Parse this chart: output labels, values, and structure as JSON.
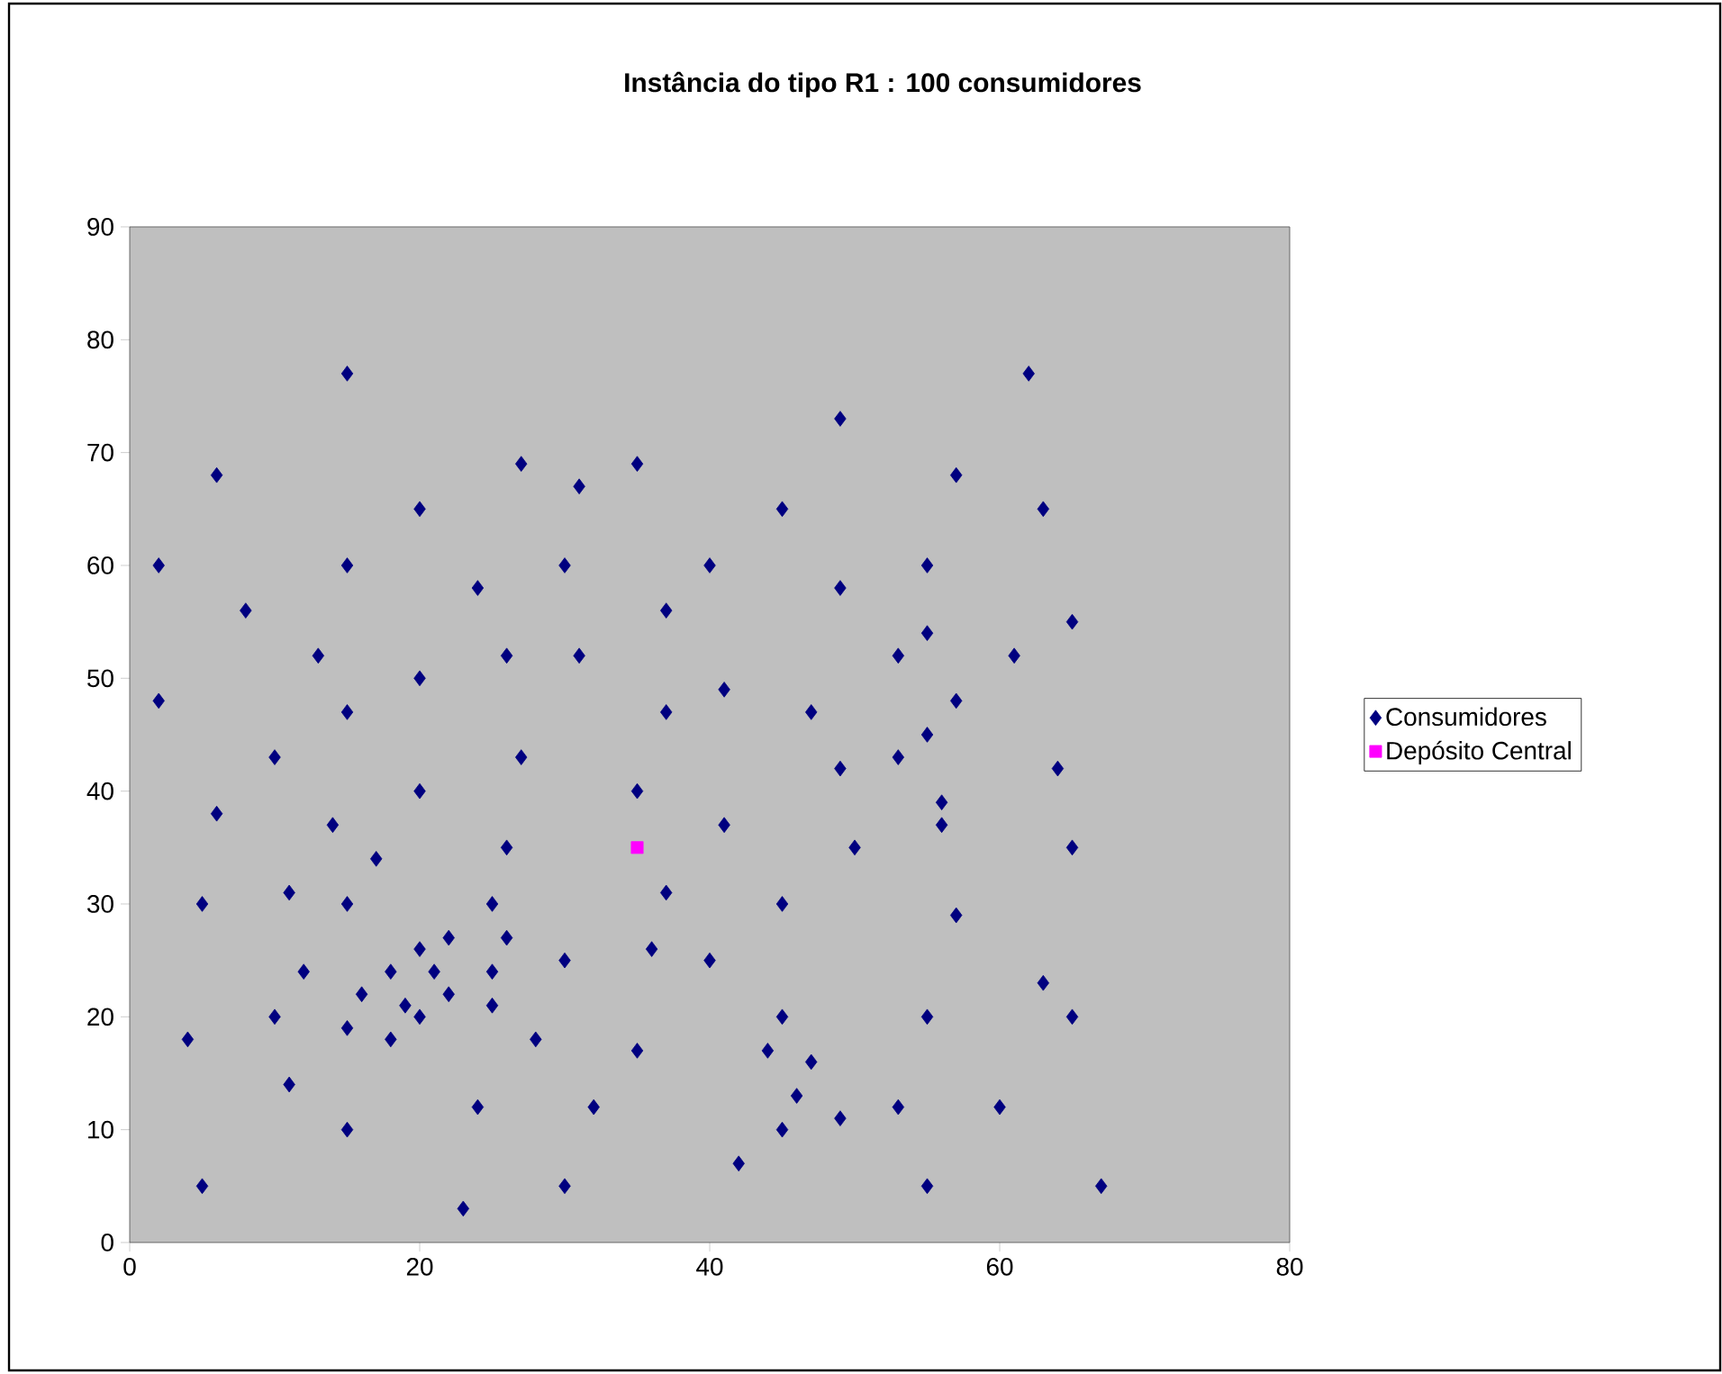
{
  "chart_data": {
    "type": "scatter",
    "title": "Instância do tipo R1 : 100 consumidores",
    "xlim": [
      0,
      80
    ],
    "ylim": [
      0,
      90
    ],
    "xticks": [
      0,
      20,
      40,
      60,
      80
    ],
    "yticks": [
      0,
      10,
      20,
      30,
      40,
      50,
      60,
      70,
      80,
      90
    ],
    "grid": false,
    "legend": "right",
    "series": [
      {
        "name": "Consumidores",
        "color": "#000080",
        "marker": "diamond",
        "x": [
          41,
          35,
          55,
          55,
          15,
          25,
          20,
          10,
          55,
          30,
          20,
          50,
          30,
          15,
          30,
          10,
          5,
          20,
          15,
          45,
          45,
          45,
          55,
          65,
          65,
          45,
          35,
          41,
          64,
          40,
          31,
          35,
          53,
          65,
          63,
          2,
          20,
          5,
          60,
          40,
          42,
          24,
          23,
          11,
          6,
          2,
          8,
          13,
          6,
          47,
          49,
          27,
          37,
          57,
          63,
          53,
          32,
          36,
          21,
          17,
          12,
          24,
          27,
          15,
          62,
          49,
          67,
          56,
          37,
          37,
          57,
          47,
          44,
          46,
          49,
          49,
          53,
          61,
          57,
          56,
          55,
          15,
          14,
          11,
          16,
          4,
          28,
          26,
          26,
          31,
          15,
          22,
          18,
          26,
          25,
          22,
          25,
          19,
          20,
          18
        ],
        "values": [
          49,
          17,
          45,
          20,
          30,
          30,
          50,
          43,
          60,
          60,
          65,
          35,
          25,
          10,
          5,
          20,
          30,
          40,
          60,
          65,
          20,
          10,
          5,
          35,
          20,
          30,
          40,
          37,
          42,
          60,
          52,
          69,
          52,
          55,
          65,
          60,
          20,
          5,
          12,
          25,
          7,
          12,
          3,
          14,
          38,
          48,
          56,
          52,
          68,
          47,
          58,
          43,
          31,
          29,
          23,
          12,
          12,
          26,
          24,
          34,
          24,
          58,
          69,
          77,
          77,
          73,
          5,
          39,
          47,
          56,
          68,
          16,
          17,
          13,
          11,
          42,
          43,
          52,
          48,
          37,
          54,
          47,
          37,
          31,
          22,
          18,
          18,
          52,
          35,
          67,
          19,
          22,
          24,
          27,
          24,
          27,
          21,
          21,
          26,
          18
        ]
      },
      {
        "name": "Depósito Central",
        "color": "#ff00ff",
        "marker": "square",
        "x": [
          35
        ],
        "values": [
          35
        ]
      }
    ]
  }
}
